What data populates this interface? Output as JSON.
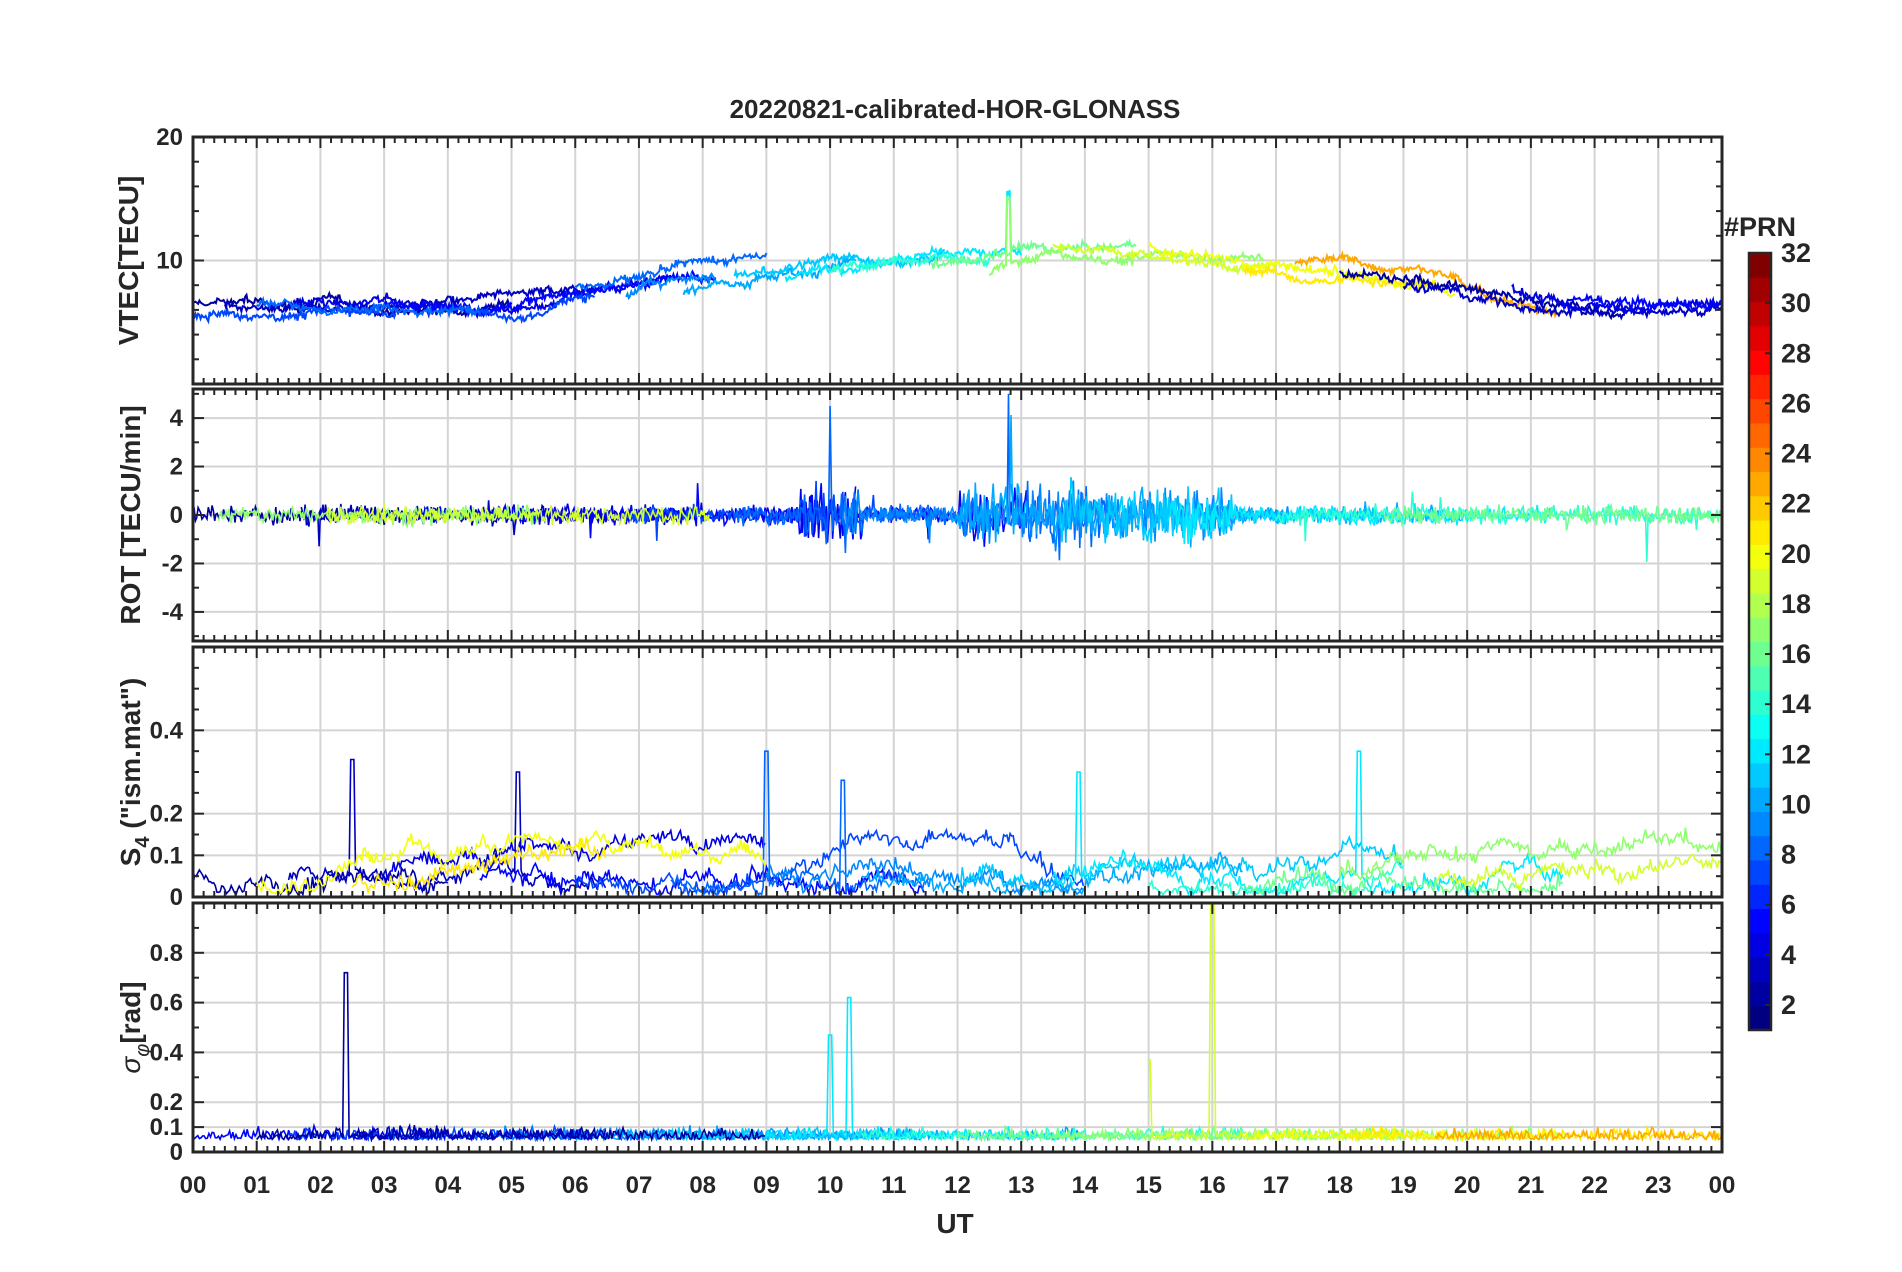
{
  "chart_data": {
    "type": "line",
    "title": "20220821-calibrated-HOR-GLONASS",
    "xlabel": "UT",
    "x_tick_labels": [
      "00",
      "01",
      "02",
      "03",
      "04",
      "05",
      "06",
      "07",
      "08",
      "09",
      "10",
      "11",
      "12",
      "13",
      "14",
      "15",
      "16",
      "17",
      "18",
      "19",
      "20",
      "21",
      "22",
      "23",
      "00"
    ],
    "xlim": [
      0,
      24
    ],
    "panels": [
      {
        "id": "vtec",
        "ylabel": "VTEC[TECU]",
        "ylim": [
          0,
          20
        ],
        "yticks": [
          0,
          10,
          20
        ],
        "ytick_labels": [
          "",
          "10",
          "20"
        ],
        "hgrid": [
          10
        ],
        "ytick_minor": [
          2,
          4,
          6,
          8,
          12,
          14,
          16,
          18
        ],
        "description_values": {
          "typical_range": [
            3,
            17
          ],
          "baseline_night": 6,
          "baseline_day": 11
        }
      },
      {
        "id": "rot",
        "ylabel": "ROT [TECU/min]",
        "ylim": [
          -5.2,
          5.2
        ],
        "yticks": [
          -4,
          -2,
          0,
          2,
          4
        ],
        "ytick_labels": [
          "-4",
          "-2",
          "0",
          "2",
          "4"
        ],
        "hgrid": [
          -4,
          -2,
          0,
          2,
          4
        ],
        "ytick_minor": [
          -5,
          -3,
          -1,
          1,
          3,
          5
        ],
        "description_values": {
          "typical_amplitude": 0.4,
          "peak_spikes": [
            [
              10.0,
              -5.2
            ],
            [
              10.0,
              4.5
            ],
            [
              12.8,
              5.0
            ],
            [
              15.0,
              5.0
            ],
            [
              16.0,
              -5.2
            ],
            [
              16.0,
              3.0
            ]
          ]
        }
      },
      {
        "id": "s4",
        "ylabel_main": "S",
        "ylabel_sub": "4",
        "ylabel_rest": " (\"ism.mat\")",
        "ylim": [
          0,
          0.6
        ],
        "yticks": [
          0,
          0.1,
          0.2,
          0.4
        ],
        "ytick_labels": [
          "0",
          "0.1",
          "0.2",
          "0.4"
        ],
        "hgrid": [
          0.1,
          0.2,
          0.4
        ],
        "ytick_minor": [
          0.05,
          0.15,
          0.25,
          0.3,
          0.35,
          0.45,
          0.5,
          0.55
        ],
        "description_values": {
          "peak_events": [
            [
              0.4,
              0.32
            ],
            [
              2.5,
              0.33
            ],
            [
              5.1,
              0.3
            ],
            [
              6.9,
              0.38
            ],
            [
              9.0,
              0.35
            ],
            [
              10.2,
              0.28
            ],
            [
              12.8,
              0.3
            ],
            [
              13.9,
              0.3
            ],
            [
              18.3,
              0.35
            ]
          ]
        }
      },
      {
        "id": "sigma_phi",
        "ylabel_main": "σ",
        "ylabel_sub": "φ",
        "ylabel_rest": "[rad]",
        "ylim": [
          0,
          1.0
        ],
        "yticks": [
          0,
          0.1,
          0.2,
          0.4,
          0.6,
          0.8
        ],
        "ytick_labels": [
          "0",
          "0.1",
          "0.2",
          "0.4",
          "0.6",
          "0.8"
        ],
        "hgrid": [
          0.1,
          0.2,
          0.4,
          0.6,
          0.8
        ],
        "ytick_minor": [
          0.3,
          0.5,
          0.7,
          0.9
        ],
        "description_values": {
          "peak_events": [
            [
              0.3,
              0.5
            ],
            [
              2.4,
              0.72
            ],
            [
              10.0,
              0.47
            ],
            [
              10.3,
              0.62
            ],
            [
              15.0,
              0.37
            ],
            [
              16.0,
              1.0
            ],
            [
              19.8,
              0.5
            ]
          ]
        }
      }
    ],
    "colorbar": {
      "title": "#PRN",
      "range": [
        1,
        32
      ],
      "tick_labels": [
        "2",
        "4",
        "6",
        "8",
        "10",
        "12",
        "14",
        "16",
        "18",
        "20",
        "22",
        "24",
        "26",
        "28",
        "30",
        "32"
      ],
      "colormap": "jet"
    }
  }
}
